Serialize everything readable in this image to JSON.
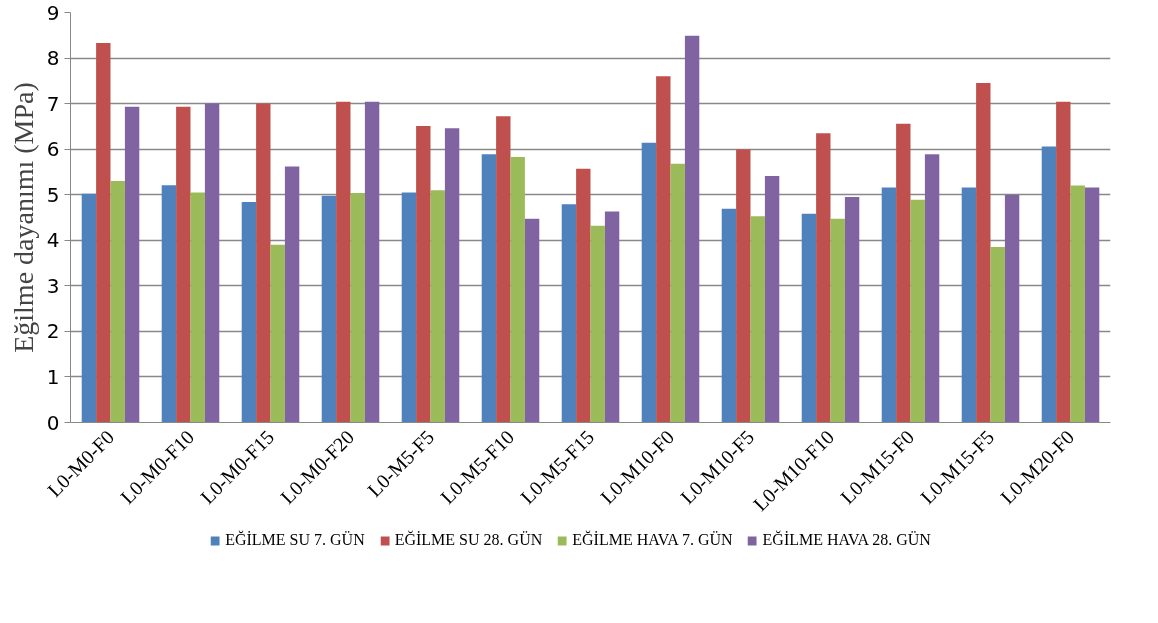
{
  "chart_data": {
    "type": "bar",
    "ylabel": "Eğilme dayanımı (MPa)",
    "categories": [
      "L0-M0-F0",
      "L0-M0-F10",
      "L0-M0-F15",
      "L0-M0-F20",
      "L0-M5-F5",
      "L0-M5-F10",
      "L0-M5-F15",
      "L0-M10-F0",
      "L0-M10-F5",
      "L0-M10-F10",
      "L0-M15-F0",
      "L0-M15-F5",
      "L0-M20-F0"
    ],
    "series": [
      {
        "name": "EĞİLME SU 7. GÜN",
        "color": "#4f81bd",
        "values": [
          5.02,
          5.21,
          4.84,
          4.98,
          5.05,
          5.89,
          4.79,
          6.14,
          4.69,
          4.58,
          5.16,
          5.16,
          6.06
        ]
      },
      {
        "name": "EĞİLME SU 28. GÜN",
        "color": "#c0504d",
        "values": [
          8.33,
          6.93,
          7.0,
          7.04,
          6.51,
          6.72,
          5.57,
          7.6,
          5.99,
          6.35,
          6.56,
          7.45,
          7.04
        ]
      },
      {
        "name": "EĞİLME HAVA 7. GÜN",
        "color": "#9bbb59",
        "values": [
          5.3,
          5.05,
          3.9,
          5.04,
          5.1,
          5.83,
          4.32,
          5.68,
          4.53,
          4.47,
          4.89,
          3.85,
          5.2
        ]
      },
      {
        "name": "EĞİLME HAVA 28. GÜN",
        "color": "#8064a2",
        "values": [
          6.93,
          7.0,
          5.62,
          7.04,
          6.46,
          4.47,
          4.63,
          8.49,
          5.41,
          4.95,
          5.89,
          5.0,
          5.16
        ]
      }
    ],
    "ylim": [
      0,
      9
    ],
    "yticks": [
      0,
      1,
      2,
      3,
      4,
      5,
      6,
      7,
      8,
      9
    ],
    "grid": "y",
    "legend": "bottom"
  }
}
